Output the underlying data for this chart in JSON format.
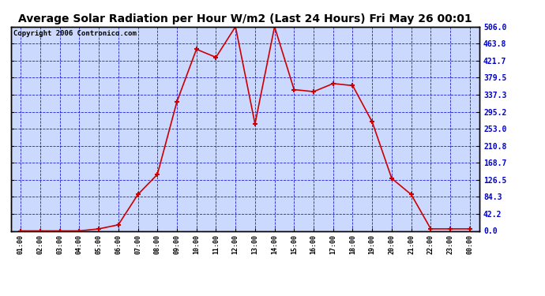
{
  "title": "Average Solar Radiation per Hour W/m2 (Last 24 Hours) Fri May 26 00:01",
  "copyright": "Copyright 2006 Contronico.com",
  "x_labels": [
    "01:00",
    "02:00",
    "03:00",
    "04:00",
    "05:00",
    "06:00",
    "07:00",
    "08:00",
    "09:00",
    "10:00",
    "11:00",
    "12:00",
    "13:00",
    "14:00",
    "15:00",
    "16:00",
    "17:00",
    "18:00",
    "19:00",
    "20:00",
    "21:00",
    "22:00",
    "23:00",
    "00:00"
  ],
  "y_values": [
    0.0,
    0.0,
    0.0,
    0.0,
    5.0,
    15.0,
    90.0,
    140.0,
    320.0,
    450.0,
    430.0,
    506.0,
    265.0,
    506.0,
    350.0,
    345.0,
    365.0,
    360.0,
    270.0,
    130.0,
    90.0,
    5.0,
    5.0,
    5.0
  ],
  "y_ticks": [
    0.0,
    42.2,
    84.3,
    126.5,
    168.7,
    210.8,
    253.0,
    295.2,
    337.3,
    379.5,
    421.7,
    463.8,
    506.0
  ],
  "y_tick_labels": [
    "0.0",
    "42.2",
    "84.3",
    "126.5",
    "168.7",
    "210.8",
    "253.0",
    "295.2",
    "337.3",
    "379.5",
    "421.7",
    "463.8",
    "506.0"
  ],
  "y_max": 506.0,
  "line_color": "#cc0000",
  "marker_color": "#cc0000",
  "bg_color": "#ccd9ff",
  "grid_color": "#0000cc",
  "border_color": "#000000",
  "outer_bg": "#ffffff",
  "title_color": "#000000",
  "title_fontsize": 10,
  "copyright_fontsize": 6.5,
  "tick_label_color": "#0000cc",
  "x_tick_color": "#000000"
}
